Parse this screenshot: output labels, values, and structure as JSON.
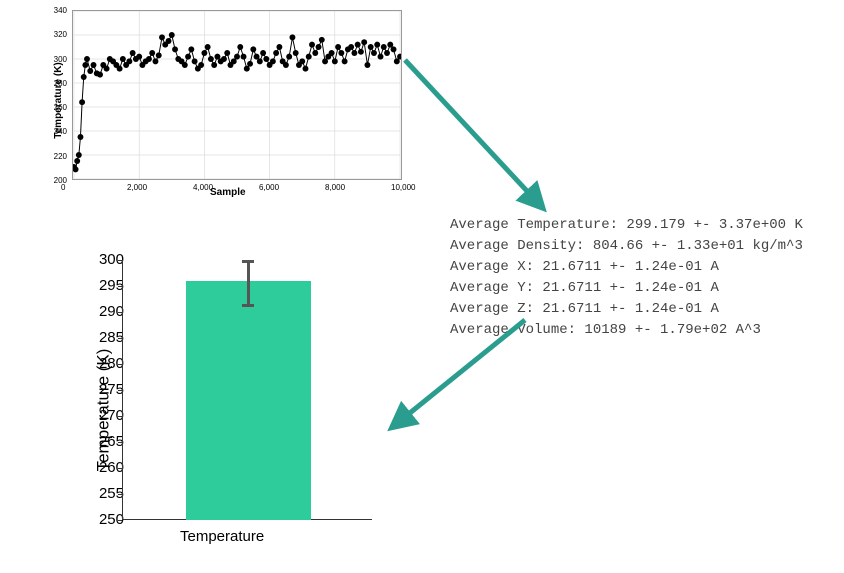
{
  "line_chart": {
    "type": "line-scatter",
    "ylabel": "Temperature (K)",
    "xlabel": "Sample",
    "xlim": [
      0,
      10000
    ],
    "ylim": [
      200,
      340
    ],
    "xticks": [
      0,
      2000,
      4000,
      6000,
      8000,
      10000
    ],
    "xtick_labels": [
      "0",
      "2,000",
      "4,000",
      "6,000",
      "8,000",
      "10,000"
    ],
    "yticks": [
      200,
      220,
      240,
      260,
      280,
      300,
      320,
      340
    ],
    "grid_color": "#cccccc",
    "line_color": "#000000",
    "marker_color": "#000000",
    "marker_size": 3,
    "line_width": 1,
    "background_color": "#ffffff",
    "label_fontsize": 10,
    "tick_fontsize": 8,
    "data": [
      [
        0,
        210
      ],
      [
        50,
        208
      ],
      [
        100,
        215
      ],
      [
        150,
        220
      ],
      [
        200,
        235
      ],
      [
        250,
        264
      ],
      [
        300,
        285
      ],
      [
        350,
        295
      ],
      [
        400,
        300
      ],
      [
        500,
        290
      ],
      [
        600,
        295
      ],
      [
        700,
        288
      ],
      [
        800,
        287
      ],
      [
        900,
        295
      ],
      [
        1000,
        292
      ],
      [
        1100,
        300
      ],
      [
        1200,
        298
      ],
      [
        1300,
        295
      ],
      [
        1400,
        292
      ],
      [
        1500,
        300
      ],
      [
        1600,
        295
      ],
      [
        1700,
        298
      ],
      [
        1800,
        305
      ],
      [
        1900,
        300
      ],
      [
        2000,
        302
      ],
      [
        2100,
        295
      ],
      [
        2200,
        298
      ],
      [
        2300,
        300
      ],
      [
        2400,
        305
      ],
      [
        2500,
        298
      ],
      [
        2600,
        303
      ],
      [
        2700,
        318
      ],
      [
        2800,
        312
      ],
      [
        2900,
        315
      ],
      [
        3000,
        320
      ],
      [
        3100,
        308
      ],
      [
        3200,
        300
      ],
      [
        3300,
        298
      ],
      [
        3400,
        295
      ],
      [
        3500,
        302
      ],
      [
        3600,
        308
      ],
      [
        3700,
        298
      ],
      [
        3800,
        292
      ],
      [
        3900,
        295
      ],
      [
        4000,
        305
      ],
      [
        4100,
        310
      ],
      [
        4200,
        300
      ],
      [
        4300,
        295
      ],
      [
        4400,
        302
      ],
      [
        4500,
        298
      ],
      [
        4600,
        300
      ],
      [
        4700,
        305
      ],
      [
        4800,
        295
      ],
      [
        4900,
        298
      ],
      [
        5000,
        302
      ],
      [
        5100,
        310
      ],
      [
        5200,
        302
      ],
      [
        5300,
        292
      ],
      [
        5400,
        296
      ],
      [
        5500,
        308
      ],
      [
        5600,
        302
      ],
      [
        5700,
        298
      ],
      [
        5800,
        305
      ],
      [
        5900,
        300
      ],
      [
        6000,
        295
      ],
      [
        6100,
        298
      ],
      [
        6200,
        305
      ],
      [
        6300,
        310
      ],
      [
        6400,
        298
      ],
      [
        6500,
        295
      ],
      [
        6600,
        302
      ],
      [
        6700,
        318
      ],
      [
        6800,
        305
      ],
      [
        6900,
        295
      ],
      [
        7000,
        298
      ],
      [
        7100,
        292
      ],
      [
        7200,
        302
      ],
      [
        7300,
        312
      ],
      [
        7400,
        305
      ],
      [
        7500,
        310
      ],
      [
        7600,
        316
      ],
      [
        7700,
        298
      ],
      [
        7800,
        302
      ],
      [
        7900,
        305
      ],
      [
        8000,
        298
      ],
      [
        8100,
        310
      ],
      [
        8200,
        305
      ],
      [
        8300,
        298
      ],
      [
        8400,
        308
      ],
      [
        8500,
        310
      ],
      [
        8600,
        305
      ],
      [
        8700,
        312
      ],
      [
        8800,
        306
      ],
      [
        8900,
        314
      ],
      [
        9000,
        295
      ],
      [
        9100,
        310
      ],
      [
        9200,
        305
      ],
      [
        9300,
        312
      ],
      [
        9400,
        302
      ],
      [
        9500,
        310
      ],
      [
        9600,
        305
      ],
      [
        9700,
        312
      ],
      [
        9800,
        308
      ],
      [
        9900,
        298
      ],
      [
        10000,
        302
      ]
    ]
  },
  "stats": {
    "lines": [
      "Average Temperature: 299.179 +- 3.37e+00 K",
      "Average Density: 804.66 +- 1.33e+01 kg/m^3",
      "Average X: 21.6711 +- 1.24e-01 A",
      "Average Y: 21.6711 +- 1.24e-01 A",
      "Average Z: 21.6711 +- 1.24e-01 A",
      "Average Volume: 10189 +- 1.79e+02 A^3"
    ],
    "text_color": "#555555",
    "font_family": "Courier New, monospace",
    "fontsize": 14
  },
  "bar_chart": {
    "type": "bar",
    "ylabel": "Temperature (K)",
    "category_label": "Temperature",
    "value": 296,
    "err_low": 291,
    "err_high": 300,
    "bar_color": "#2ecc9a",
    "bar_width": 0.5,
    "ylim": [
      250,
      300
    ],
    "yticks": [
      250,
      255,
      260,
      265,
      270,
      275,
      280,
      285,
      290,
      295,
      300
    ],
    "error_bar_color": "#555555",
    "error_bar_width": 3,
    "label_fontsize": 17,
    "tick_fontsize": 15
  },
  "arrows": {
    "color": "#2a9d8f",
    "stroke_width": 5
  }
}
